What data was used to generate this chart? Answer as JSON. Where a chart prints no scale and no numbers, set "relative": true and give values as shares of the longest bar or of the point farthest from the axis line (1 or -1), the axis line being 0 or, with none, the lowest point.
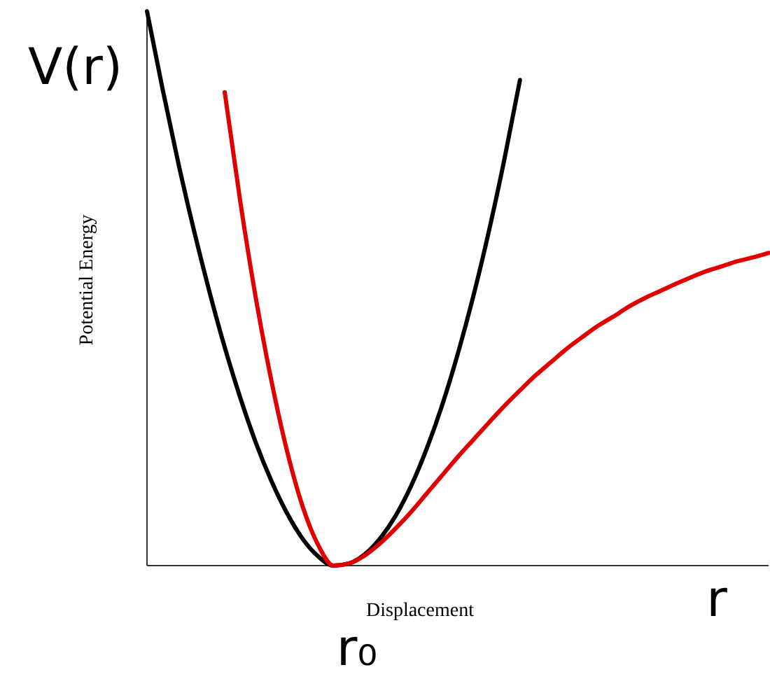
{
  "chart_data": {
    "type": "line",
    "relative": true,
    "xlabel": "Displacement",
    "ylabel": "Potential Energy",
    "tick_labels": false,
    "annotations": [
      "V(r)",
      "r",
      "r₀"
    ],
    "categories": [
      null,
      null,
      null,
      null,
      null,
      null,
      null,
      null,
      null,
      null,
      null,
      null,
      null,
      null,
      null,
      null,
      null,
      null,
      null,
      null,
      null,
      null,
      null,
      null,
      null,
      null,
      null,
      null,
      null,
      null,
      null,
      null,
      null,
      null,
      null,
      null,
      null,
      null,
      null,
      null,
      null
    ],
    "series": [
      {
        "color": "#000000",
        "values": [
          1.0,
          0.86,
          0.728,
          0.607,
          0.496,
          0.394,
          0.303,
          0.222,
          0.153,
          0.095,
          0.049,
          0.017,
          0.0,
          0.004,
          0.02,
          0.049,
          0.09,
          0.144,
          0.211,
          0.29,
          0.382,
          0.486,
          0.603,
          0.733,
          0.876,
          null,
          null,
          null,
          null,
          null,
          null,
          null,
          null,
          null,
          null,
          null,
          null,
          null,
          null,
          null,
          null
        ]
      },
      {
        "color": "#e00000",
        "values": [
          null,
          null,
          null,
          null,
          null,
          0.854,
          0.657,
          0.483,
          0.334,
          0.208,
          0.108,
          0.038,
          0.0,
          0.004,
          0.018,
          0.04,
          0.067,
          0.097,
          0.13,
          0.163,
          0.196,
          0.227,
          0.258,
          0.288,
          0.316,
          0.343,
          0.367,
          0.391,
          0.412,
          0.432,
          0.449,
          0.467,
          0.482,
          0.495,
          0.508,
          0.52,
          0.531,
          0.54,
          0.549,
          0.556,
          0.564
        ]
      }
    ]
  }
}
